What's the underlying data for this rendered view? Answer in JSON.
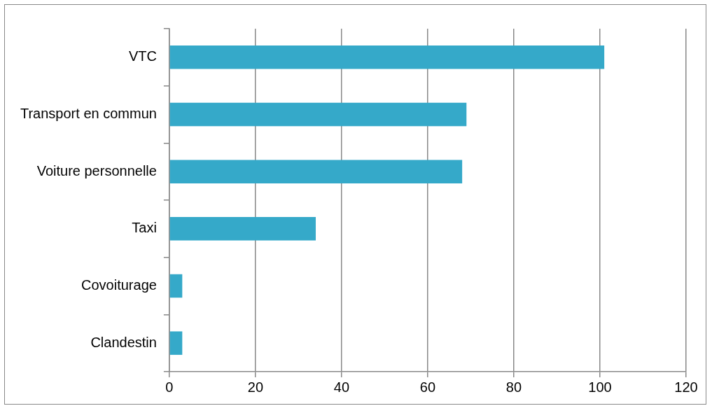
{
  "chart_data": {
    "type": "bar",
    "orientation": "horizontal",
    "categories": [
      "VTC",
      "Transport en commun",
      "Voiture personnelle",
      "Taxi",
      "Covoiturage",
      "Clandestin"
    ],
    "values": [
      101,
      69,
      68,
      34,
      3,
      3
    ],
    "color": "#35a9c9",
    "xlim": [
      0,
      120
    ],
    "xticks": [
      0,
      20,
      40,
      60,
      80,
      100,
      120
    ],
    "grid": "x",
    "legend": false
  }
}
